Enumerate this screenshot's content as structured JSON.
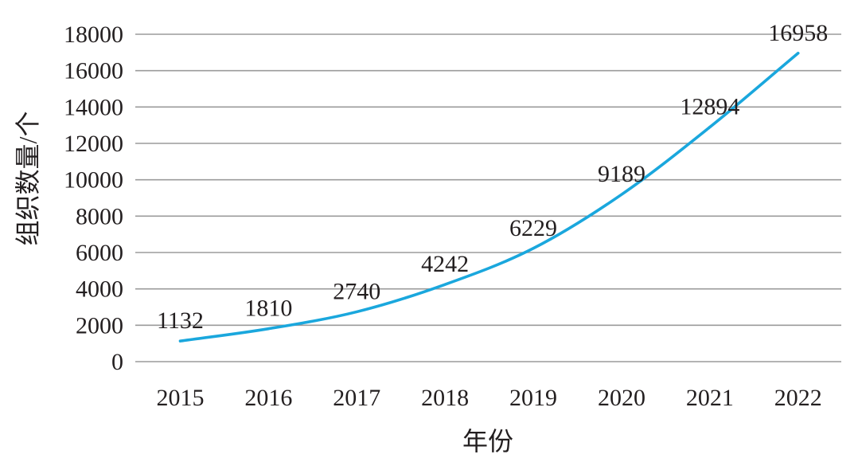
{
  "chart_data": {
    "type": "line",
    "title": "",
    "xlabel": "年份",
    "ylabel": "组织数量/个",
    "categories": [
      "2015",
      "2016",
      "2017",
      "2018",
      "2019",
      "2020",
      "2021",
      "2022"
    ],
    "series": [
      {
        "values": [
          1132,
          1810,
          2740,
          4242,
          6229,
          9189,
          12894,
          16958
        ],
        "color": "#1aa7dd"
      }
    ],
    "data_labels": [
      "1132",
      "1810",
      "2740",
      "4242",
      "6229",
      "9189",
      "12894",
      "16958"
    ],
    "ylim": [
      0,
      18000
    ],
    "yticks": [
      0,
      2000,
      4000,
      6000,
      8000,
      10000,
      12000,
      14000,
      16000,
      18000
    ],
    "grid": true,
    "legend": "none"
  }
}
